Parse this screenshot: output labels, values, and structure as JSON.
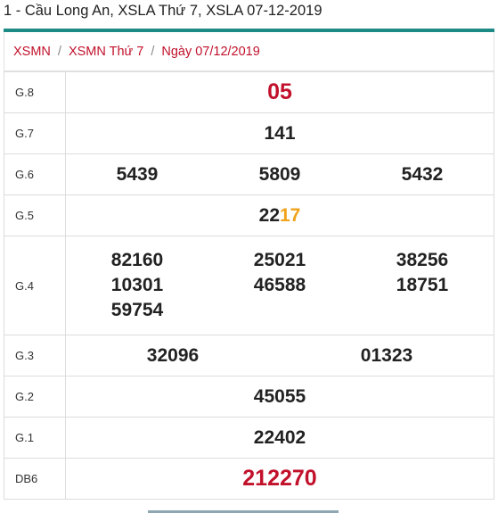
{
  "title": "1 - Cầu Long An, XSLA Thứ 7, XSLA 07-12-2019",
  "breadcrumb": {
    "items": [
      "XSMN",
      "XSMN Thứ 7",
      "Ngày 07/12/2019"
    ],
    "separator": "/"
  },
  "colors": {
    "accent": "#1e8a86",
    "red": "#c1112b",
    "orange": "#f0a21a"
  },
  "prizes": {
    "g8": {
      "label": "G.8",
      "value": "05"
    },
    "g7": {
      "label": "G.7",
      "value": "141"
    },
    "g6": {
      "label": "G.6",
      "values": [
        "5439",
        "5809",
        "5432"
      ]
    },
    "g5": {
      "label": "G.5",
      "prefix": "22",
      "highlight": "17"
    },
    "g4": {
      "label": "G.4",
      "values": [
        "82160",
        "25021",
        "3",
        "8256",
        "10301",
        "46588",
        "18751",
        "59754"
      ]
    },
    "g3": {
      "label": "G.3",
      "values": [
        "32096",
        "01323"
      ]
    },
    "g2": {
      "label": "G.2",
      "value": "45055"
    },
    "g1": {
      "label": "G.1",
      "value": "22402"
    },
    "db6": {
      "label": "DB6",
      "value": "212270"
    }
  }
}
